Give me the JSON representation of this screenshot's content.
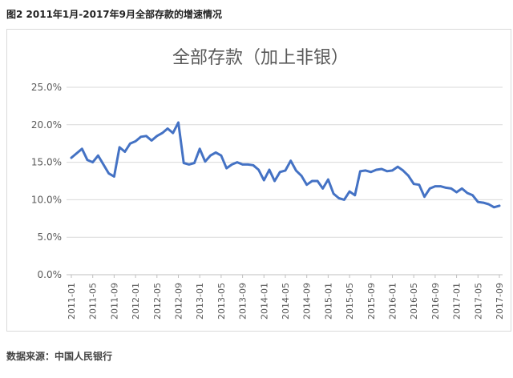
{
  "figure_title": "图2 2011年1月-2017年9月全部存款的增速情况",
  "source": "数据来源：中国人民银行",
  "chart_data": {
    "type": "line",
    "title": "全部存款（加上非银）",
    "xlabel": "",
    "ylabel": "",
    "ylim": [
      0,
      25
    ],
    "grid": true,
    "legend": "none",
    "line_color": "#4472C4",
    "ytick_labels": [
      "0.0%",
      "5.0%",
      "10.0%",
      "15.0%",
      "20.0%",
      "25.0%"
    ],
    "ytick_values": [
      0,
      5,
      10,
      15,
      20,
      25
    ],
    "xtick_labels": [
      "2011-01",
      "2011-05",
      "2011-09",
      "2012-01",
      "2012-05",
      "2012-09",
      "2013-01",
      "2013-05",
      "2013-09",
      "2014-01",
      "2014-05",
      "2014-09",
      "2015-01",
      "2015-05",
      "2015-09",
      "2016-01",
      "2016-05",
      "2016-09",
      "2017-01",
      "2017-05",
      "2017-09"
    ],
    "x": [
      "2011-01",
      "2011-02",
      "2011-03",
      "2011-04",
      "2011-05",
      "2011-06",
      "2011-07",
      "2011-08",
      "2011-09",
      "2011-10",
      "2011-11",
      "2011-12",
      "2012-01",
      "2012-02",
      "2012-03",
      "2012-04",
      "2012-05",
      "2012-06",
      "2012-07",
      "2012-08",
      "2012-09",
      "2012-10",
      "2012-11",
      "2012-12",
      "2013-01",
      "2013-02",
      "2013-03",
      "2013-04",
      "2013-05",
      "2013-06",
      "2013-07",
      "2013-08",
      "2013-09",
      "2013-10",
      "2013-11",
      "2013-12",
      "2014-01",
      "2014-02",
      "2014-03",
      "2014-04",
      "2014-05",
      "2014-06",
      "2014-07",
      "2014-08",
      "2014-09",
      "2014-10",
      "2014-11",
      "2014-12",
      "2015-01",
      "2015-02",
      "2015-03",
      "2015-04",
      "2015-05",
      "2015-06",
      "2015-07",
      "2015-08",
      "2015-09",
      "2015-10",
      "2015-11",
      "2015-12",
      "2016-01",
      "2016-02",
      "2016-03",
      "2016-04",
      "2016-05",
      "2016-06",
      "2016-07",
      "2016-08",
      "2016-09",
      "2016-10",
      "2016-11",
      "2016-12",
      "2017-01",
      "2017-02",
      "2017-03",
      "2017-04",
      "2017-05",
      "2017-06",
      "2017-07",
      "2017-08",
      "2017-09"
    ],
    "values": [
      15.6,
      16.2,
      16.8,
      15.3,
      15.0,
      15.9,
      14.7,
      13.5,
      13.1,
      17.0,
      16.4,
      17.5,
      17.8,
      18.4,
      18.5,
      17.9,
      18.5,
      18.9,
      19.5,
      18.9,
      20.3,
      14.9,
      14.7,
      14.9,
      16.8,
      15.1,
      15.9,
      16.3,
      15.9,
      14.2,
      14.7,
      15.0,
      14.7,
      14.7,
      14.6,
      14.0,
      12.6,
      14.0,
      12.5,
      13.7,
      13.9,
      15.2,
      13.9,
      13.2,
      12.0,
      12.5,
      12.5,
      11.5,
      12.7,
      10.8,
      10.2,
      10.0,
      11.1,
      10.6,
      13.8,
      13.9,
      13.7,
      14.0,
      14.1,
      13.8,
      13.9,
      14.4,
      13.9,
      13.2,
      12.1,
      12.0,
      10.4,
      11.5,
      11.8,
      11.8,
      11.6,
      11.5,
      11.0,
      11.5,
      10.9,
      10.6,
      9.7,
      9.6,
      9.4,
      9.0,
      9.2
    ]
  }
}
